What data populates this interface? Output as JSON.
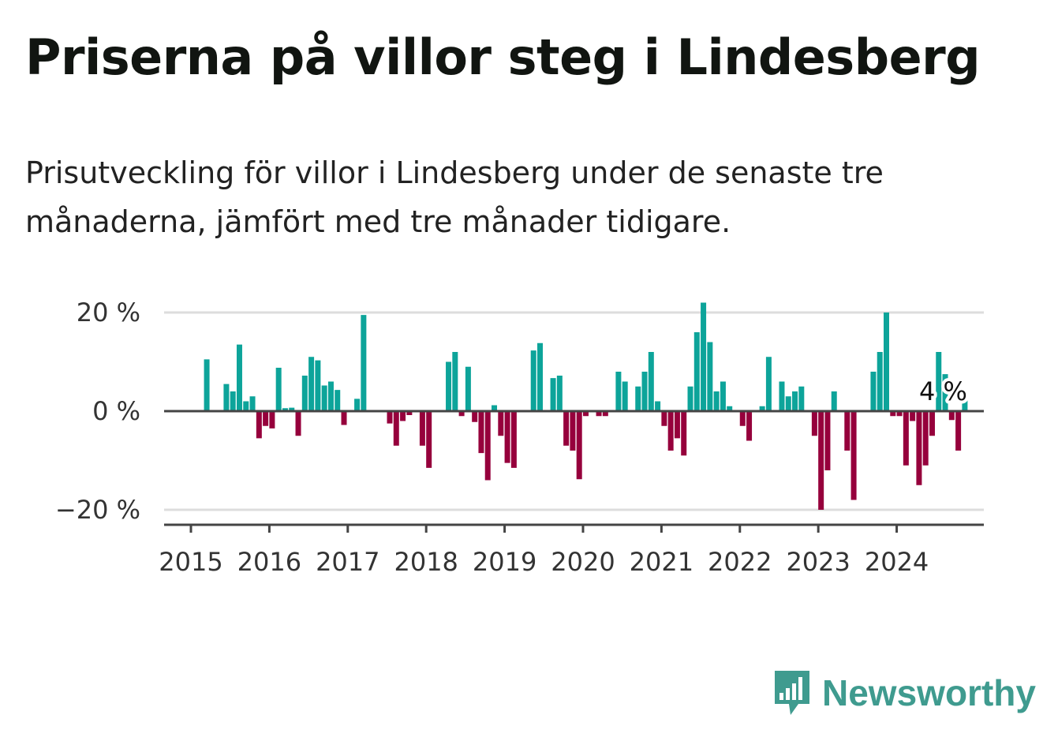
{
  "header": {
    "title": "Priserna på villor steg i Lindesberg",
    "subtitle": "Prisutveckling för villor i Lindesberg under de senaste tre månaderna, jämfört med tre månader tidigare."
  },
  "brand": {
    "name": "Newsworthy",
    "icon": "newsworthy-logo-icon"
  },
  "colors": {
    "positive": "#0da49a",
    "negative": "#96003c",
    "grid": "#dddddd",
    "axis": "#444444",
    "brand": "#3f9b8f"
  },
  "chart_data": {
    "type": "bar",
    "x_start": "2015-01",
    "x_ticks": [
      "2015",
      "2016",
      "2017",
      "2018",
      "2019",
      "2020",
      "2021",
      "2022",
      "2023",
      "2024"
    ],
    "y_ticks": [
      {
        "value": 20,
        "label": "20 %"
      },
      {
        "value": 0,
        "label": "0 %"
      },
      {
        "value": -20,
        "label": "−20 %"
      }
    ],
    "ylim": [
      -22.5,
      22
    ],
    "grid": true,
    "values": [
      null,
      null,
      10.5,
      null,
      null,
      5.5,
      4,
      13.5,
      2,
      3,
      -5.5,
      -3,
      -3.5,
      8.8,
      0.6,
      0.7,
      -5,
      7.2,
      11,
      10.3,
      5.2,
      6,
      4.3,
      -2.8,
      null,
      2.5,
      19.5,
      null,
      null,
      null,
      -2.5,
      -7,
      -2,
      -0.8,
      null,
      -7,
      -11.5,
      null,
      null,
      10,
      12,
      -1,
      9,
      -2.2,
      -8.5,
      -14,
      1.2,
      -5,
      -10.5,
      -11.5,
      null,
      null,
      12.3,
      13.8,
      null,
      6.7,
      7.2,
      -7,
      -8,
      -13.8,
      -1,
      null,
      -1,
      -1,
      null,
      8,
      6,
      null,
      5,
      8,
      12,
      2,
      -3,
      -8,
      -5.5,
      -9,
      5,
      16,
      22,
      14,
      4,
      6,
      1,
      null,
      -3,
      -6,
      null,
      1,
      11,
      null,
      6,
      3,
      4,
      5,
      null,
      -5,
      -20,
      -12,
      4,
      null,
      -8,
      -18,
      null,
      null,
      8,
      12,
      20,
      -1,
      -1,
      -11,
      -2,
      -15,
      -11,
      -5,
      12,
      7.5,
      -1.8,
      -8,
      4
    ],
    "annotation": {
      "label": "4 %",
      "value": 4
    }
  }
}
